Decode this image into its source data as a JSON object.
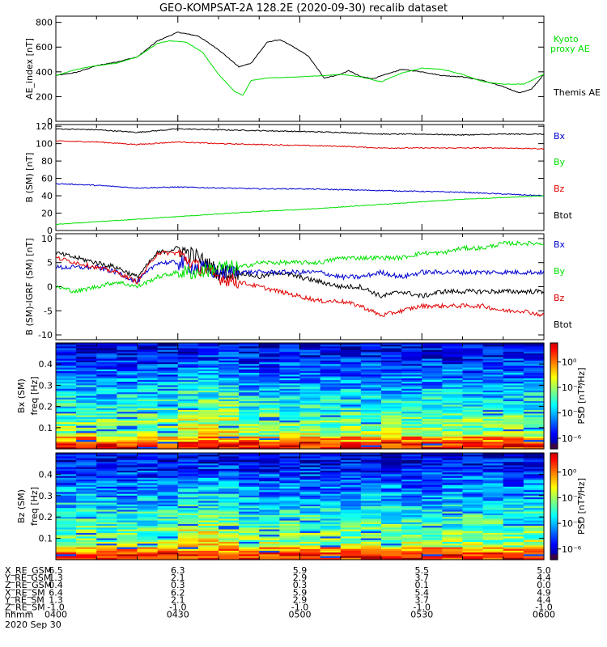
{
  "title": "GEO-KOMPSAT-2A 128.2E (2020-09-30) recalib dataset",
  "colors": {
    "black": "#000000",
    "red": "#e00000",
    "green": "#00e000",
    "blue": "#0000d0"
  },
  "chart_data": [
    {
      "type": "line",
      "ylabel": "AE_index [nT]",
      "ylim": [
        0,
        850
      ],
      "yticks": [
        "0",
        "200",
        "400",
        "600",
        "800"
      ],
      "x_minutes": [
        0,
        10,
        20,
        30,
        40,
        50,
        60,
        70,
        80,
        90,
        100,
        110,
        120
      ],
      "series": [
        {
          "name": "Themis AE",
          "color": "#000000",
          "x": [
            0,
            5,
            10,
            15,
            20,
            25,
            30,
            35,
            40,
            45,
            48,
            52,
            55,
            58,
            62,
            66,
            70,
            72,
            75,
            78,
            85,
            90,
            95,
            100,
            105,
            110,
            114,
            117,
            120
          ],
          "y": [
            370,
            395,
            450,
            480,
            520,
            650,
            720,
            690,
            580,
            440,
            470,
            640,
            660,
            610,
            530,
            350,
            380,
            410,
            360,
            345,
            420,
            400,
            370,
            360,
            330,
            280,
            230,
            260,
            380
          ]
        },
        {
          "name": "Kyoto proxy AE",
          "color": "#00e000",
          "x": [
            0,
            5,
            10,
            15,
            20,
            25,
            28,
            32,
            36,
            40,
            44,
            46,
            48,
            52,
            56,
            60,
            66,
            70,
            75,
            80,
            85,
            90,
            95,
            100,
            105,
            110,
            115,
            120
          ],
          "y": [
            370,
            420,
            450,
            470,
            520,
            630,
            650,
            640,
            560,
            380,
            240,
            210,
            330,
            350,
            355,
            360,
            370,
            380,
            360,
            320,
            390,
            430,
            420,
            380,
            320,
            300,
            300,
            380
          ]
        }
      ],
      "legend": [
        "Kyoto proxy AE",
        "Themis AE"
      ]
    },
    {
      "type": "line",
      "ylabel": "B (SM) [nT]",
      "ylim": [
        0,
        122
      ],
      "yticks": [
        "0",
        "20",
        "40",
        "60",
        "80",
        "100",
        "120"
      ],
      "series": [
        {
          "name": "Bx",
          "color": "#000000",
          "x": [
            0,
            10,
            20,
            30,
            40,
            50,
            60,
            70,
            80,
            90,
            100,
            110,
            120
          ],
          "y": [
            117,
            116,
            113,
            117,
            116,
            115,
            114,
            113,
            111,
            111,
            110,
            111,
            111
          ]
        },
        {
          "name": "By",
          "color": "#e00000",
          "x": [
            0,
            10,
            20,
            30,
            40,
            50,
            60,
            70,
            80,
            90,
            100,
            110,
            120
          ],
          "y": [
            103,
            102,
            99,
            102,
            100,
            99,
            98,
            97,
            95,
            95,
            95,
            95,
            94
          ]
        },
        {
          "name": "Bz",
          "color": "#0000d0",
          "x": [
            0,
            10,
            20,
            30,
            40,
            50,
            60,
            70,
            80,
            90,
            100,
            110,
            120
          ],
          "y": [
            54,
            52,
            49,
            50,
            49,
            48,
            48,
            47,
            46,
            45,
            44,
            42,
            40
          ]
        },
        {
          "name": "Btot",
          "color": "#00e000",
          "x": [
            0,
            10,
            20,
            30,
            40,
            50,
            60,
            70,
            80,
            90,
            100,
            110,
            120
          ],
          "y": [
            7,
            10,
            13,
            16,
            19,
            22,
            24,
            27,
            30,
            33,
            36,
            38,
            40
          ]
        }
      ],
      "legend": [
        "Bx",
        "By",
        "Bz",
        "Btot"
      ]
    },
    {
      "type": "line",
      "ylabel": "B (SM)-IGRF (SM) [nT]",
      "ylim": [
        -11,
        11
      ],
      "yticks": [
        "-10",
        "-5",
        "0",
        "5",
        "10"
      ],
      "series": [
        {
          "name": "Bx",
          "color": "#000000",
          "x": [
            0,
            5,
            10,
            15,
            20,
            25,
            30,
            35,
            40,
            45,
            50,
            55,
            60,
            65,
            70,
            75,
            80,
            85,
            90,
            95,
            100,
            105,
            110,
            115,
            120
          ],
          "y": [
            7,
            6,
            5,
            4,
            2,
            7,
            8,
            6,
            3,
            3,
            2,
            3,
            2,
            1,
            0,
            0,
            -2,
            -1,
            -2,
            -1,
            -1,
            -1,
            -1,
            -1,
            -1
          ]
        },
        {
          "name": "By",
          "color": "#0000d0",
          "x": [
            0,
            5,
            10,
            15,
            20,
            25,
            30,
            35,
            40,
            45,
            50,
            55,
            60,
            65,
            70,
            75,
            80,
            85,
            90,
            95,
            100,
            105,
            110,
            115,
            120
          ],
          "y": [
            4,
            4,
            4,
            3,
            1,
            5,
            5,
            4,
            3,
            3,
            3,
            3,
            3,
            3,
            2,
            2,
            3,
            2,
            3,
            3,
            3,
            3,
            3,
            3,
            3
          ]
        },
        {
          "name": "Bz",
          "color": "#e00000",
          "x": [
            0,
            5,
            10,
            15,
            20,
            25,
            30,
            35,
            40,
            45,
            50,
            55,
            60,
            65,
            70,
            75,
            80,
            85,
            90,
            95,
            100,
            105,
            110,
            115,
            120
          ],
          "y": [
            6,
            5,
            4,
            3,
            1,
            7,
            7,
            4,
            2,
            1,
            0,
            -1,
            -2,
            -3,
            -3,
            -4,
            -6,
            -5,
            -4,
            -4,
            -4,
            -4,
            -5,
            -5,
            -6
          ]
        },
        {
          "name": "Btot",
          "color": "#00e000",
          "x": [
            0,
            5,
            10,
            15,
            20,
            25,
            30,
            35,
            40,
            45,
            50,
            55,
            60,
            65,
            70,
            75,
            80,
            85,
            90,
            95,
            100,
            105,
            110,
            115,
            120
          ],
          "y": [
            0,
            -1,
            0,
            1,
            0,
            2,
            3,
            3,
            4,
            4,
            5,
            5,
            5,
            5,
            6,
            6,
            6,
            6,
            7,
            7,
            8,
            8,
            9,
            9,
            9
          ]
        }
      ],
      "legend": [
        "Bx",
        "By",
        "Bz",
        "Btot"
      ]
    },
    {
      "type": "heatmap",
      "ylabel": "Bx (SM) freq [Hz]",
      "yticks": [
        "0.1",
        "0.2",
        "0.3",
        "0.4"
      ],
      "ylim": [
        0,
        0.5
      ],
      "colorbar": {
        "label": "PSD [nT²/Hz]",
        "ticks": [
          "10⁰",
          "10⁻²",
          "10⁻⁴",
          "10⁻⁶"
        ]
      }
    },
    {
      "type": "heatmap",
      "ylabel": "Bz (SM) freq [Hz]",
      "yticks": [
        "0.1",
        "0.2",
        "0.3",
        "0.4"
      ],
      "ylim": [
        0,
        0.5
      ],
      "colorbar": {
        "label": "PSD [nT²/Hz]",
        "ticks": [
          "10⁰",
          "10⁻²",
          "10⁻⁴",
          "10⁻⁶"
        ]
      }
    }
  ],
  "legend_labels": {
    "p1_kyoto_1": "Kyoto",
    "p1_kyoto_2": "proxy AE",
    "p1_themis": "Themis AE",
    "bx": "Bx",
    "by": "By",
    "bz": "Bz",
    "btot": "Btot"
  },
  "orbit": {
    "rows": [
      "X_RE_GSM",
      "Y_RE_GSM",
      "Z_RE_GSM",
      "X_RE_SM",
      "Y_RE_SM",
      "Z_RE_SM",
      "hhmm"
    ],
    "values": [
      [
        "6.5",
        "6.3",
        "5.9",
        "5.5",
        "5.0"
      ],
      [
        "1.3",
        "2.1",
        "2.9",
        "3.7",
        "4.4"
      ],
      [
        "0.4",
        "0.3",
        "0.3",
        "0.1",
        "0.0"
      ],
      [
        "6.4",
        "6.2",
        "5.9",
        "5.4",
        "4.9"
      ],
      [
        "1.3",
        "2.1",
        "2.9",
        "3.7",
        "4.4"
      ],
      [
        "-1.0",
        "-1.0",
        "-1.0",
        "-1.0",
        "-1.0"
      ],
      [
        "0400",
        "0430",
        "0500",
        "0530",
        "0600"
      ]
    ],
    "date": "2020 Sep 30"
  }
}
